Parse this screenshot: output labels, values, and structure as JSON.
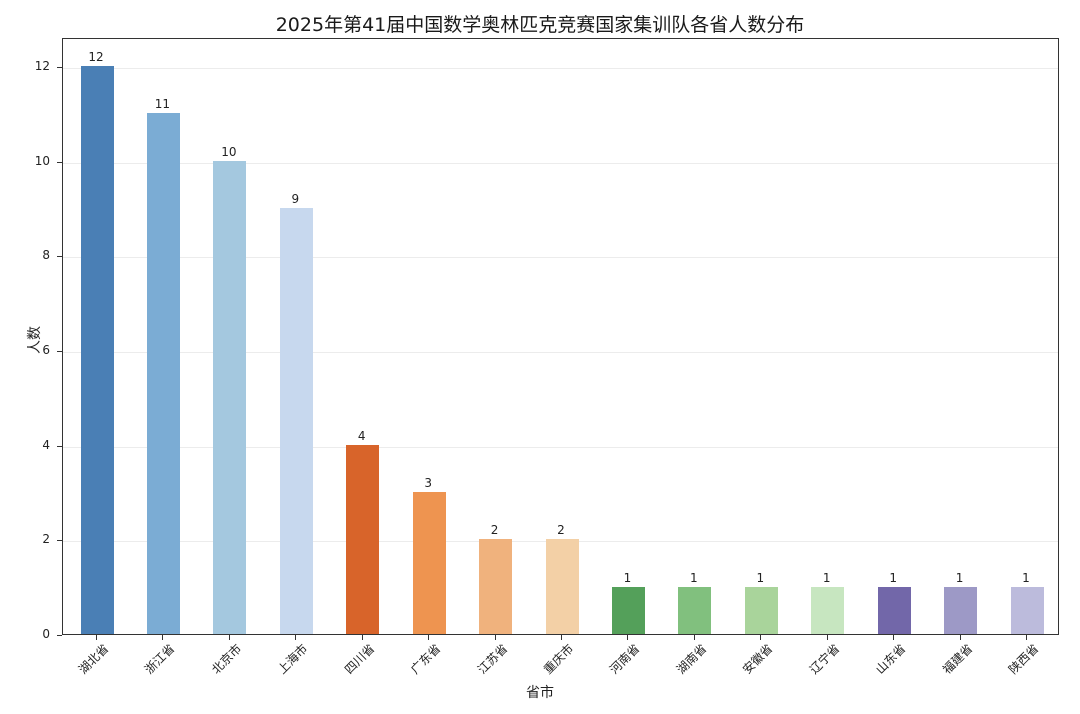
{
  "chart_data": {
    "type": "bar",
    "title": "2025年第41届中国数学奥林匹克竞赛国家集训队各省人数分布",
    "xlabel": "省市",
    "ylabel": "人数",
    "ylim": [
      0,
      12.6
    ],
    "yticks": [
      0,
      2,
      4,
      6,
      8,
      10,
      12
    ],
    "grid": "horizontal",
    "legend": null,
    "categories": [
      "湖北省",
      "浙江省",
      "北京市",
      "上海市",
      "四川省",
      "广东省",
      "江苏省",
      "重庆市",
      "河南省",
      "湖南省",
      "安徽省",
      "辽宁省",
      "山东省",
      "福建省",
      "陕西省"
    ],
    "values": [
      12,
      11,
      10,
      9,
      4,
      3,
      2,
      2,
      1,
      1,
      1,
      1,
      1,
      1,
      1
    ],
    "data_labels": [
      "12",
      "11",
      "10",
      "9",
      "4",
      "3",
      "2",
      "2",
      "1",
      "1",
      "1",
      "1",
      "1",
      "1",
      "1"
    ],
    "colors": [
      "#4a7fb5",
      "#7bacd4",
      "#a4c8df",
      "#c7d8ee",
      "#d8642a",
      "#ee9450",
      "#f0b27d",
      "#f3d0a6",
      "#54a05a",
      "#81c07e",
      "#a9d49b",
      "#c7e6c0",
      "#7267a9",
      "#9d99c6",
      "#bcbbdc"
    ]
  }
}
